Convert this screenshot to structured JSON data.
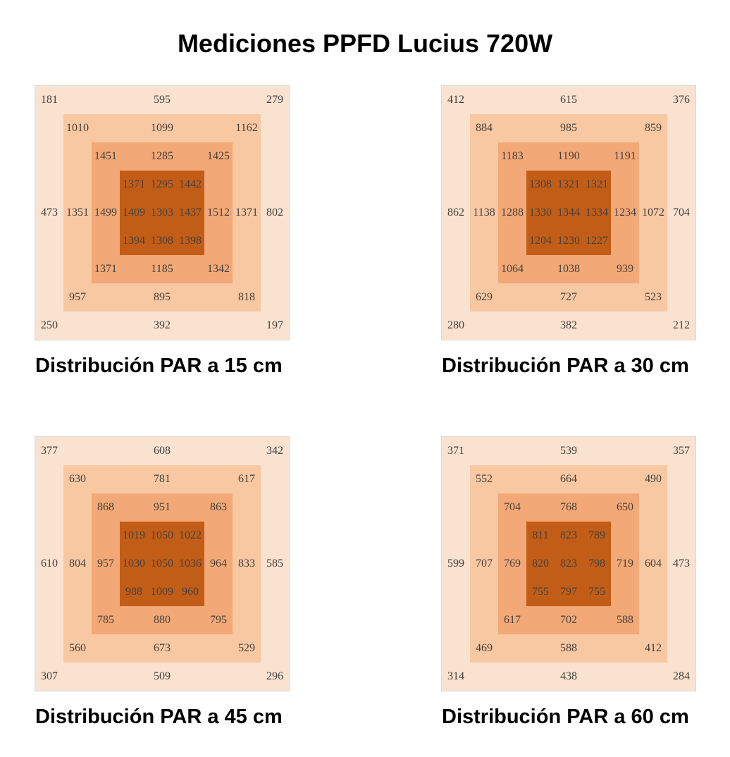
{
  "title": "Mediciones PPFD Lucius 720W",
  "colors": {
    "zone_outer": "#FAE2D0",
    "zone_mid": "#F8C8A3",
    "zone_inner": "#F3A877",
    "zone_core": "#C25D17",
    "value_text": "#46413a",
    "map_border": "#d8d8d8",
    "title_text": "#000000"
  },
  "chart_data": [
    {
      "type": "heatmap",
      "caption": "Distribución PAR a 15 cm",
      "distance_cm": 15,
      "rows": 9,
      "cols": 9,
      "values": [
        [
          181,
          null,
          null,
          null,
          595,
          null,
          null,
          null,
          279
        ],
        [
          null,
          1010,
          null,
          null,
          1099,
          null,
          null,
          1162,
          null
        ],
        [
          null,
          null,
          1451,
          null,
          1285,
          null,
          1425,
          null,
          null
        ],
        [
          null,
          null,
          null,
          1371,
          1295,
          1442,
          null,
          null,
          null
        ],
        [
          473,
          1351,
          1499,
          1409,
          1303,
          1437,
          1512,
          1371,
          802
        ],
        [
          null,
          null,
          null,
          1394,
          1308,
          1398,
          null,
          null,
          null
        ],
        [
          null,
          null,
          1371,
          null,
          1185,
          null,
          1342,
          null,
          null
        ],
        [
          null,
          957,
          null,
          null,
          895,
          null,
          null,
          818,
          null
        ],
        [
          250,
          null,
          null,
          null,
          392,
          null,
          null,
          null,
          197
        ]
      ]
    },
    {
      "type": "heatmap",
      "caption": "Distribución PAR a 30 cm",
      "distance_cm": 30,
      "rows": 9,
      "cols": 9,
      "values": [
        [
          412,
          null,
          null,
          null,
          615,
          null,
          null,
          null,
          376
        ],
        [
          null,
          884,
          null,
          null,
          985,
          null,
          null,
          859,
          null
        ],
        [
          null,
          null,
          1183,
          null,
          1190,
          null,
          1191,
          null,
          null
        ],
        [
          null,
          null,
          null,
          1308,
          1321,
          1321,
          null,
          null,
          null
        ],
        [
          862,
          1138,
          1288,
          1330,
          1344,
          1334,
          1234,
          1072,
          704
        ],
        [
          null,
          null,
          null,
          1204,
          1230,
          1227,
          null,
          null,
          null
        ],
        [
          null,
          null,
          1064,
          null,
          1038,
          null,
          939,
          null,
          null
        ],
        [
          null,
          629,
          null,
          null,
          727,
          null,
          null,
          523,
          null
        ],
        [
          280,
          null,
          null,
          null,
          382,
          null,
          null,
          null,
          212
        ]
      ]
    },
    {
      "type": "heatmap",
      "caption": "Distribución PAR a 45 cm",
      "distance_cm": 45,
      "rows": 9,
      "cols": 9,
      "values": [
        [
          377,
          null,
          null,
          null,
          608,
          null,
          null,
          null,
          342
        ],
        [
          null,
          630,
          null,
          null,
          781,
          null,
          null,
          617,
          null
        ],
        [
          null,
          null,
          868,
          null,
          951,
          null,
          863,
          null,
          null
        ],
        [
          null,
          null,
          null,
          1019,
          1050,
          1022,
          null,
          null,
          null
        ],
        [
          610,
          804,
          957,
          1030,
          1050,
          1036,
          964,
          833,
          585
        ],
        [
          null,
          null,
          null,
          988,
          1009,
          960,
          null,
          null,
          null
        ],
        [
          null,
          null,
          785,
          null,
          880,
          null,
          795,
          null,
          null
        ],
        [
          null,
          560,
          null,
          null,
          673,
          null,
          null,
          529,
          null
        ],
        [
          307,
          null,
          null,
          null,
          509,
          null,
          null,
          null,
          296
        ]
      ]
    },
    {
      "type": "heatmap",
      "caption": "Distribución PAR a 60 cm",
      "distance_cm": 60,
      "rows": 9,
      "cols": 9,
      "values": [
        [
          371,
          null,
          null,
          null,
          539,
          null,
          null,
          null,
          357
        ],
        [
          null,
          552,
          null,
          null,
          664,
          null,
          null,
          490,
          null
        ],
        [
          null,
          null,
          704,
          null,
          768,
          null,
          650,
          null,
          null
        ],
        [
          null,
          null,
          null,
          811,
          823,
          789,
          null,
          null,
          null
        ],
        [
          599,
          707,
          769,
          820,
          823,
          798,
          719,
          604,
          473
        ],
        [
          null,
          null,
          null,
          755,
          797,
          755,
          null,
          null,
          null
        ],
        [
          null,
          null,
          617,
          null,
          702,
          null,
          588,
          null,
          null
        ],
        [
          null,
          469,
          null,
          null,
          588,
          null,
          null,
          412,
          null
        ],
        [
          314,
          null,
          null,
          null,
          438,
          null,
          null,
          null,
          284
        ]
      ]
    }
  ]
}
